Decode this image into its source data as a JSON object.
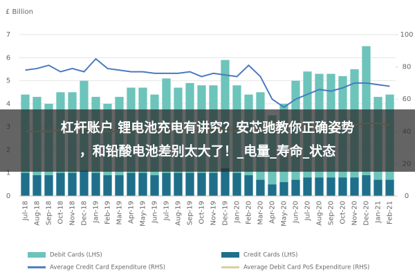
{
  "chart_data": {
    "type": "bar-line",
    "y_label": "£ Billion",
    "categories": [
      "Jul-18",
      "Aug-18",
      "Sep-18",
      "Oct-18",
      "Nov-18",
      "Dec-18",
      "Jan-19",
      "Feb-19",
      "Mar-19",
      "Apr-19",
      "May-19",
      "Jun-19",
      "Jul-19",
      "Aug-19",
      "Sep-19",
      "Oct-19",
      "Nov-19",
      "Dec-19",
      "Jan-20",
      "Feb-20",
      "Mar-20",
      "Apr-20",
      "May-20",
      "Jun-20",
      "Jul-20",
      "Aug-20",
      "Sep-20",
      "Oct-20",
      "Nov-20",
      "Dec-20",
      "Jan-21",
      "Feb-21"
    ],
    "series": [
      {
        "name": "Debit Cards (LHS)",
        "kind": "bar",
        "color": "#6cc4bb",
        "values": [
          4.4,
          4.3,
          4.0,
          4.5,
          4.5,
          5.0,
          4.3,
          4.0,
          4.3,
          4.7,
          4.7,
          4.4,
          5.1,
          4.7,
          4.9,
          4.8,
          4.8,
          5.9,
          4.8,
          4.4,
          4.5,
          3.5,
          4.0,
          5.0,
          5.4,
          5.3,
          5.3,
          5.2,
          5.5,
          6.5,
          4.3,
          4.4
        ]
      },
      {
        "name": "Credit Cards (LHS)",
        "kind": "bar",
        "color": "#1f6f8b",
        "values": [
          1.0,
          0.9,
          0.9,
          1.0,
          1.0,
          1.1,
          1.0,
          0.9,
          0.9,
          1.0,
          1.0,
          0.9,
          1.0,
          1.0,
          1.0,
          1.0,
          1.0,
          1.2,
          1.0,
          0.9,
          0.7,
          0.5,
          0.6,
          0.7,
          0.8,
          0.8,
          0.8,
          0.8,
          0.8,
          0.9,
          0.7,
          0.7
        ]
      },
      {
        "name": "Average Credit Card Expenditure (RHS)",
        "kind": "line",
        "axis": "y2",
        "color": "#4a78c0",
        "values": [
          78,
          79,
          81,
          77,
          79,
          77,
          85,
          79,
          78,
          77,
          77,
          76,
          76,
          76,
          77,
          74,
          76,
          75,
          74,
          81,
          74,
          60,
          55,
          60,
          63,
          66,
          65,
          67,
          70,
          70,
          69,
          68
        ]
      },
      {
        "name": "Average Debit Card PoS Expenditure (RHS)",
        "kind": "line",
        "axis": "y2",
        "color": "#d6cc9c",
        "values": [
          40,
          40,
          40,
          41,
          41,
          42,
          40,
          40,
          40,
          41,
          41,
          40,
          41,
          41,
          41,
          40,
          41,
          42,
          40,
          40,
          42,
          46,
          45,
          44,
          43,
          43,
          43,
          43,
          44,
          45,
          45,
          44
        ]
      }
    ],
    "ylim": [
      0,
      7
    ],
    "yticks": [
      0,
      1,
      2,
      3,
      4,
      5,
      6,
      7
    ],
    "y2lim": [
      0,
      100
    ],
    "y2ticks": [
      0,
      20,
      40,
      60,
      80,
      100
    ],
    "grid": true
  },
  "banner": {
    "lines": [
      "杠杆账户 锂电池充电有讲究？安芯驰教你正确姿势",
      "，和铅酸电池差别太大了！_电量_寿命_状态"
    ]
  }
}
